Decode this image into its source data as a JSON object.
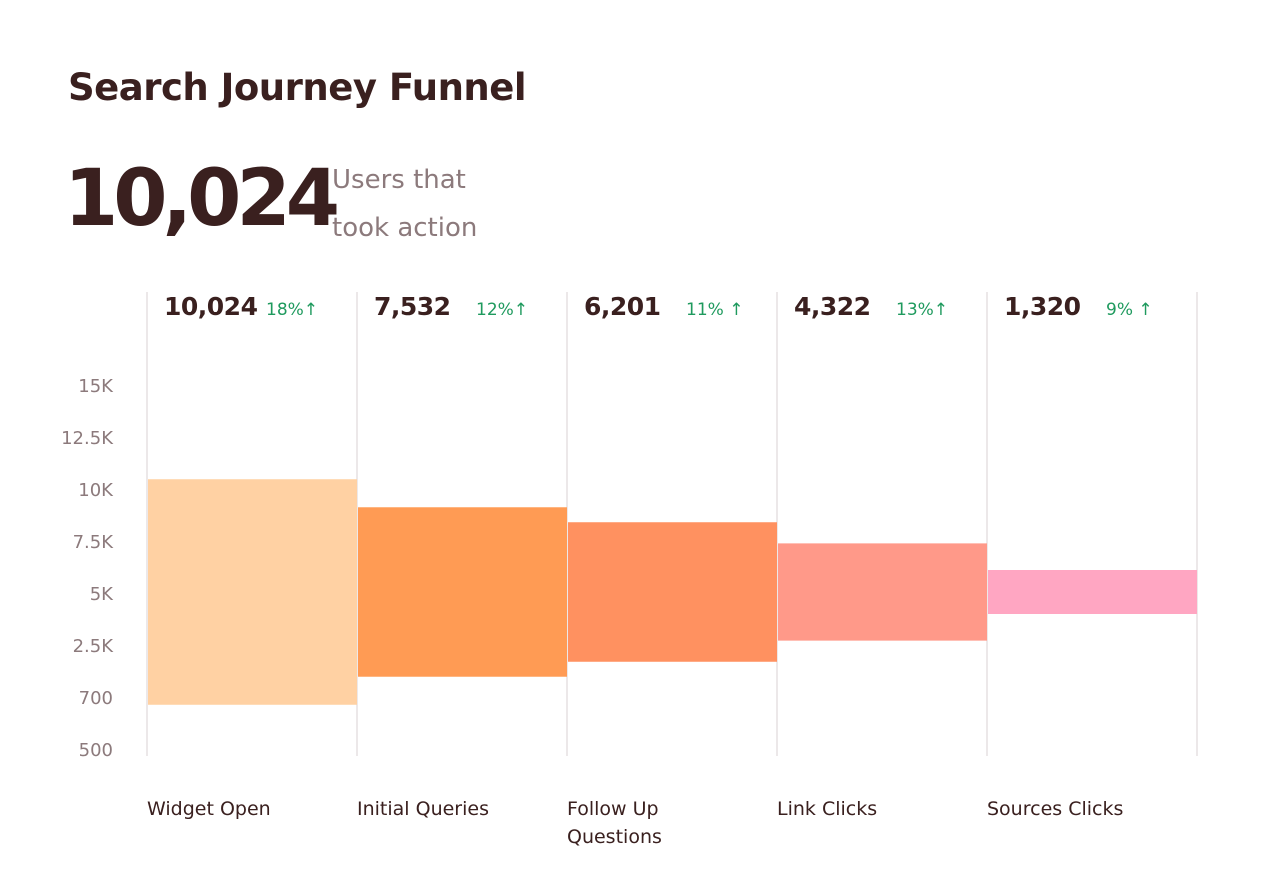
{
  "header": {
    "title": "Search Journey Funnel",
    "total_value": "10,024",
    "total_caption": "Users that took action"
  },
  "chart_data": {
    "type": "bar",
    "subtype": "funnel",
    "y_tick_labels": [
      "15K",
      "12.5K",
      "10K",
      "7.5K",
      "5K",
      "2.5K",
      "700",
      "500"
    ],
    "categories": [
      "Widget Open",
      "Initial Queries",
      "Follow Up Questions",
      "Link Clicks",
      "Sources Clicks"
    ],
    "values": [
      10024,
      7532,
      6201,
      4322,
      1320
    ],
    "value_labels": [
      "10,024",
      "7,532",
      "6,201",
      "4,322",
      "1,320"
    ],
    "change_labels": [
      "18%↑",
      "12%↑",
      "11% ↑",
      "13%↑",
      "9% ↑"
    ],
    "change_color": "#1f9a5e",
    "colors": [
      "#ffd1a3",
      "#ff9b54",
      "#ff9160",
      "#ff9989",
      "#ffa6c2"
    ],
    "grid": true,
    "legend": "none"
  }
}
